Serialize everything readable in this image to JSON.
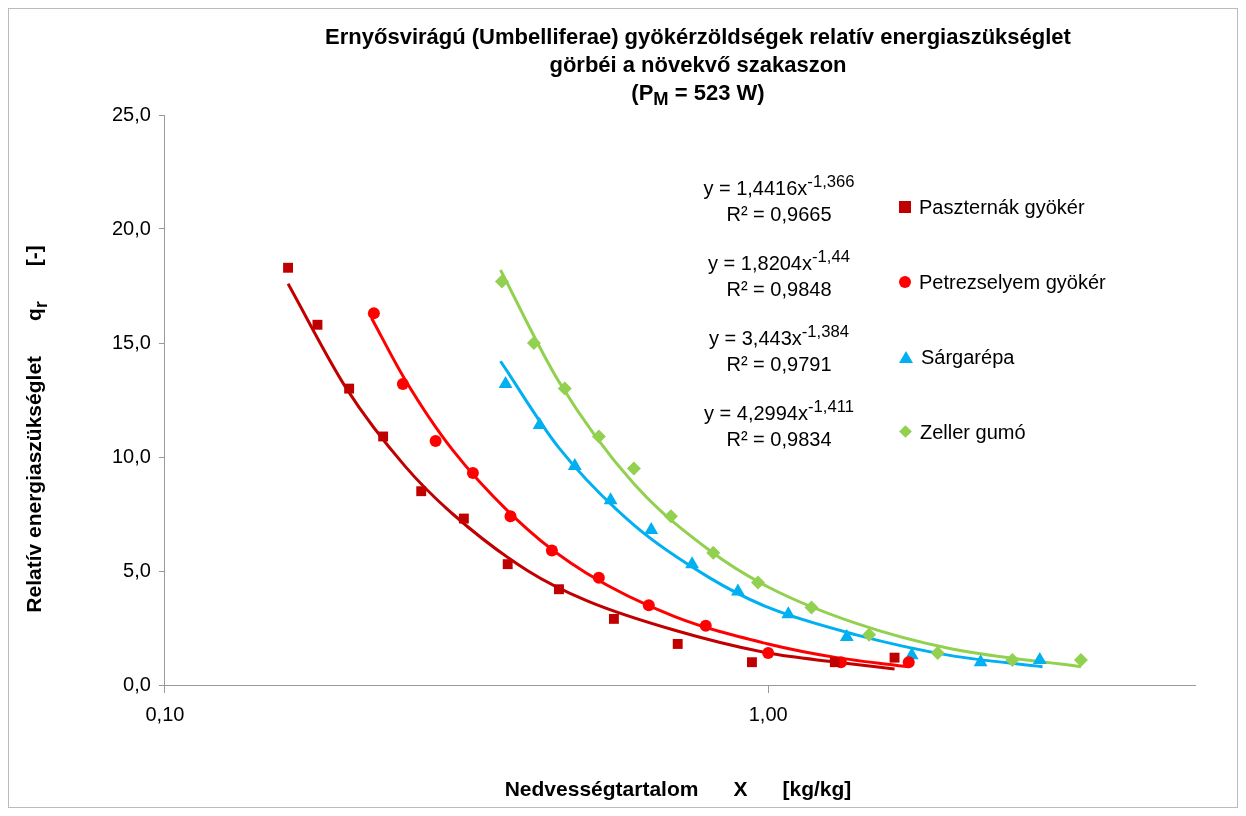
{
  "chart_data": {
    "type": "scatter",
    "title": "Ernyősvirágú (Umbelliferae) gyökérzöldségek relatív energiaszükséglet\ngörbéi a növekvő szakaszon\n(P$_{M}$ = 523 W)",
    "xlabel": "Nedvességtartalom      X      [kg/kg]",
    "ylabel": "Relatív energiaszükséglet      q$_{r}$      [-]",
    "log": "x",
    "xlim": [
      0.1,
      5.1
    ],
    "xticks": [
      {
        "value": 0.1,
        "label": "0,10"
      },
      {
        "value": 1,
        "label": "1,00"
      }
    ],
    "ylim": [
      0,
      25
    ],
    "yticks": [
      {
        "value": 0,
        "label": "0,0"
      },
      {
        "value": 5,
        "label": "5,0"
      },
      {
        "value": 10,
        "label": "10,0"
      },
      {
        "value": 15,
        "label": "15,0"
      },
      {
        "value": 20,
        "label": "20,0"
      },
      {
        "value": 25,
        "label": "25,0"
      }
    ],
    "grid": false,
    "legend": "top right",
    "annotations": [
      "y = 1,4416x$^{-1,366}$",
      "R² = 0,9665",
      "y = 1,8204x$^{-1,44}$",
      "R² = 0,9848",
      "y = 3,443x$^{-1,384}$",
      "R² = 0,9791",
      "y = 4,2994x$^{-1,411}$",
      "R² = 0,9834"
    ],
    "series": [
      {
        "name": "Paszternák gyökér",
        "marker": "square",
        "color": "#c00000",
        "x": [
          0.16,
          0.179,
          0.202,
          0.23,
          0.266,
          0.313,
          0.37,
          0.45,
          0.555,
          0.708,
          0.94,
          1.29,
          1.62
        ],
        "values": [
          18.3,
          15.8,
          13.0,
          10.9,
          8.5,
          7.3,
          5.3,
          4.2,
          2.9,
          1.8,
          1.0,
          1.0,
          1.2
        ]
      },
      {
        "name": "Petrezselyem gyökér",
        "marker": "circle",
        "color": "#ff0000",
        "x": [
          0.222,
          0.248,
          0.281,
          0.324,
          0.374,
          0.438,
          0.524,
          0.634,
          0.788,
          1.0,
          1.32,
          1.71
        ],
        "values": [
          16.3,
          13.2,
          10.7,
          9.3,
          7.4,
          5.9,
          4.7,
          3.5,
          2.6,
          1.4,
          1.0,
          1.0
        ]
      },
      {
        "name": "Sárgarépa",
        "marker": "triangle",
        "color": "#00b0f0",
        "x": [
          0.367,
          0.418,
          0.478,
          0.548,
          0.64,
          0.748,
          0.891,
          1.08,
          1.35,
          1.73,
          2.25,
          2.82
        ],
        "values": [
          13.2,
          11.4,
          9.6,
          8.1,
          6.8,
          5.3,
          4.1,
          3.1,
          2.1,
          1.3,
          1.0,
          1.1
        ]
      },
      {
        "name": "Zeller gumó",
        "marker": "diamond",
        "color": "#92d050",
        "x": [
          0.362,
          0.409,
          0.46,
          0.524,
          0.599,
          0.69,
          0.811,
          0.962,
          1.18,
          1.47,
          1.91,
          2.54,
          3.3
        ],
        "values": [
          17.7,
          15.0,
          13.0,
          10.9,
          9.5,
          7.4,
          5.8,
          4.5,
          3.4,
          2.2,
          1.4,
          1.1,
          1.1
        ]
      },
      {
        "type": "line",
        "marker": "none",
        "color": "#c00000",
        "x": [
          0.16,
          0.2,
          0.25,
          0.3,
          0.4,
          0.5,
          0.7,
          1.0,
          1.3,
          1.62
        ],
        "values": [
          17.6,
          13.0,
          9.6,
          7.5,
          5.0,
          3.7,
          2.4,
          1.4,
          1.0,
          0.7
        ]
      },
      {
        "type": "line",
        "marker": "none",
        "color": "#ff0000",
        "x": [
          0.22,
          0.25,
          0.3,
          0.4,
          0.5,
          0.7,
          1.0,
          1.3,
          1.71
        ],
        "values": [
          16.1,
          13.4,
          10.3,
          6.8,
          4.9,
          3.0,
          1.8,
          1.2,
          0.8
        ]
      },
      {
        "type": "line",
        "marker": "none",
        "color": "#00b0f0",
        "x": [
          0.36,
          0.45,
          0.6,
          0.8,
          1.0,
          1.4,
          2.0,
          2.85
        ],
        "values": [
          14.2,
          10.4,
          7.0,
          4.7,
          3.4,
          2.2,
          1.3,
          0.8
        ]
      },
      {
        "type": "line",
        "marker": "none",
        "color": "#92d050",
        "x": [
          0.36,
          0.45,
          0.6,
          0.8,
          1.0,
          1.4,
          2.0,
          3.3
        ],
        "values": [
          18.2,
          13.3,
          8.8,
          5.9,
          4.3,
          2.7,
          1.6,
          0.8
        ]
      }
    ]
  }
}
